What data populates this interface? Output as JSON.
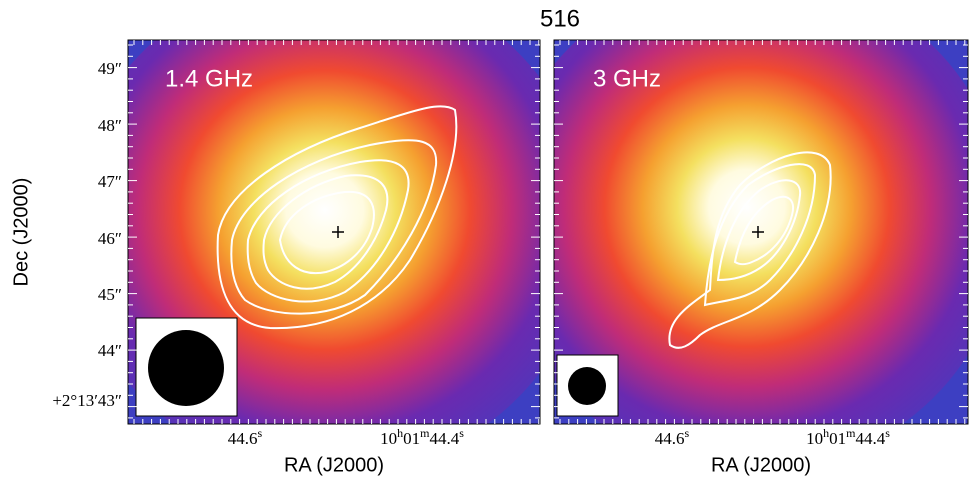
{
  "title": "516",
  "panels": [
    {
      "label": "1.4 GHz"
    },
    {
      "label": "3 GHz"
    }
  ],
  "y_axis": {
    "label": "Dec (J2000)",
    "ticks": [
      "49″",
      "48″",
      "47″",
      "46″",
      "45″",
      "44″",
      "+2°13′43″"
    ]
  },
  "x_axis": {
    "label": "RA (J2000)",
    "ticks": [
      [
        "44.6",
        "s"
      ],
      [
        "10",
        "h",
        "01",
        "m",
        "44.4",
        "s"
      ]
    ]
  }
}
